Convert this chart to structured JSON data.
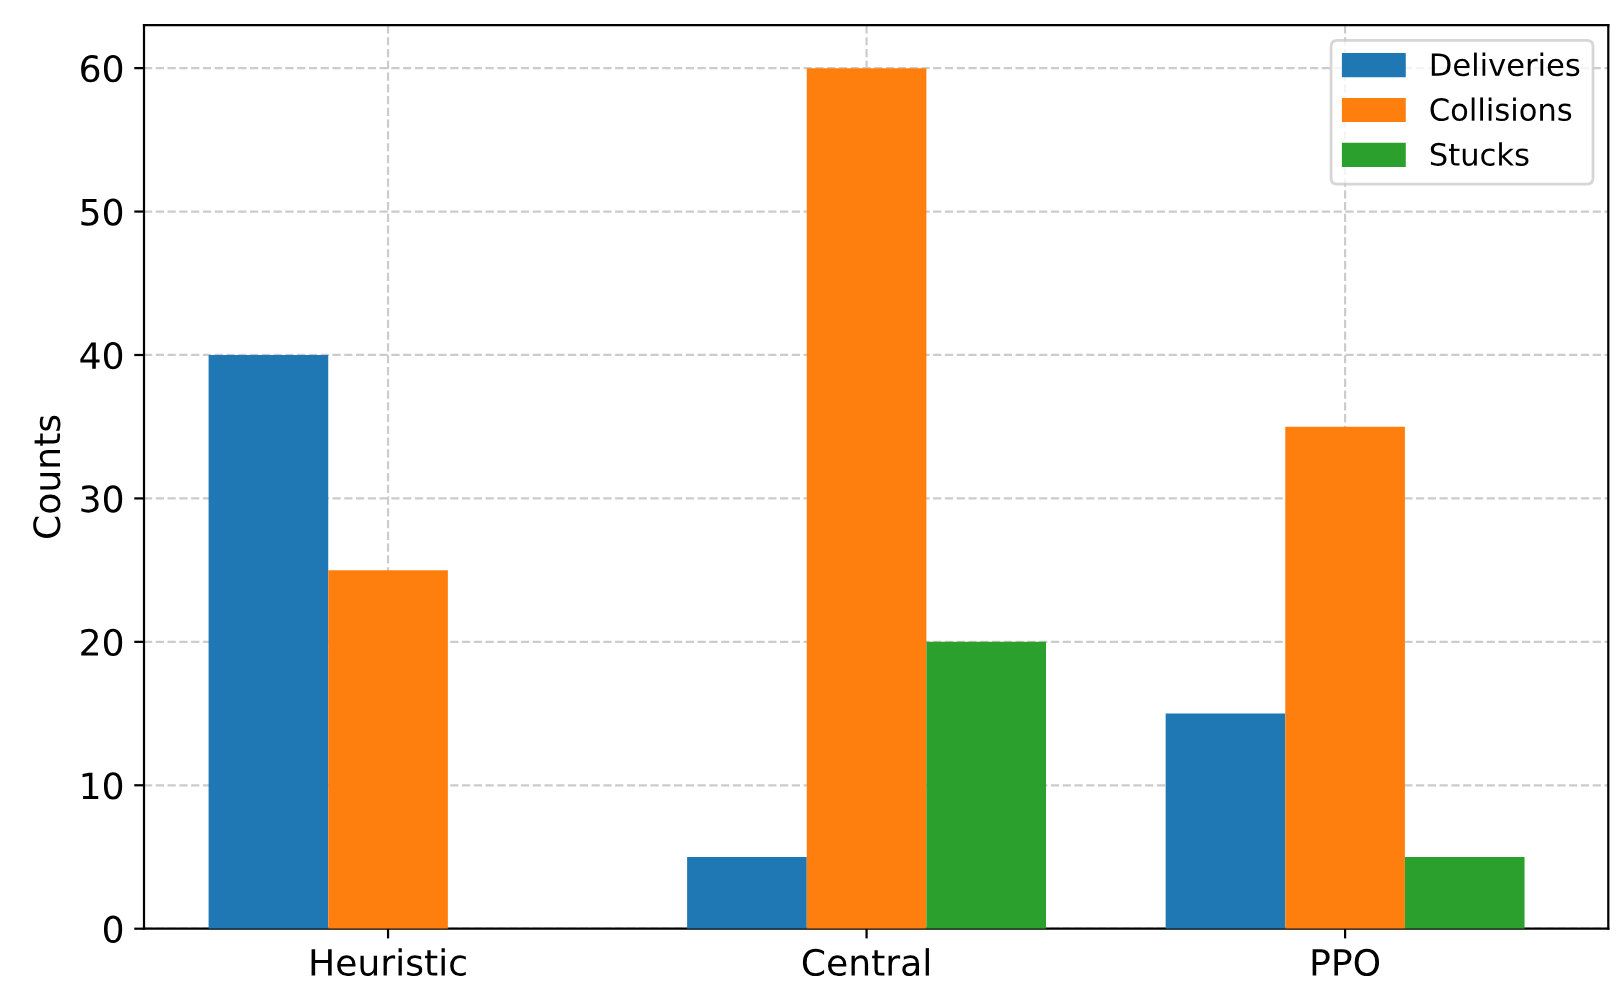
{
  "chart_data": {
    "type": "bar",
    "ylabel": "Counts",
    "categories": [
      "Heuristic",
      "Central",
      "PPO"
    ],
    "series": [
      {
        "name": "Deliveries",
        "color": "#1f77b4",
        "values": [
          40,
          5,
          15
        ]
      },
      {
        "name": "Collisions",
        "color": "#ff7f0e",
        "values": [
          25,
          60,
          35
        ]
      },
      {
        "name": "Stucks",
        "color": "#2ca02c",
        "values": [
          0,
          20,
          5
        ]
      }
    ],
    "ylim": [
      0,
      63
    ],
    "yticks": [
      0,
      10,
      20,
      30,
      40,
      50,
      60
    ],
    "grid": true,
    "legend": "top right"
  }
}
